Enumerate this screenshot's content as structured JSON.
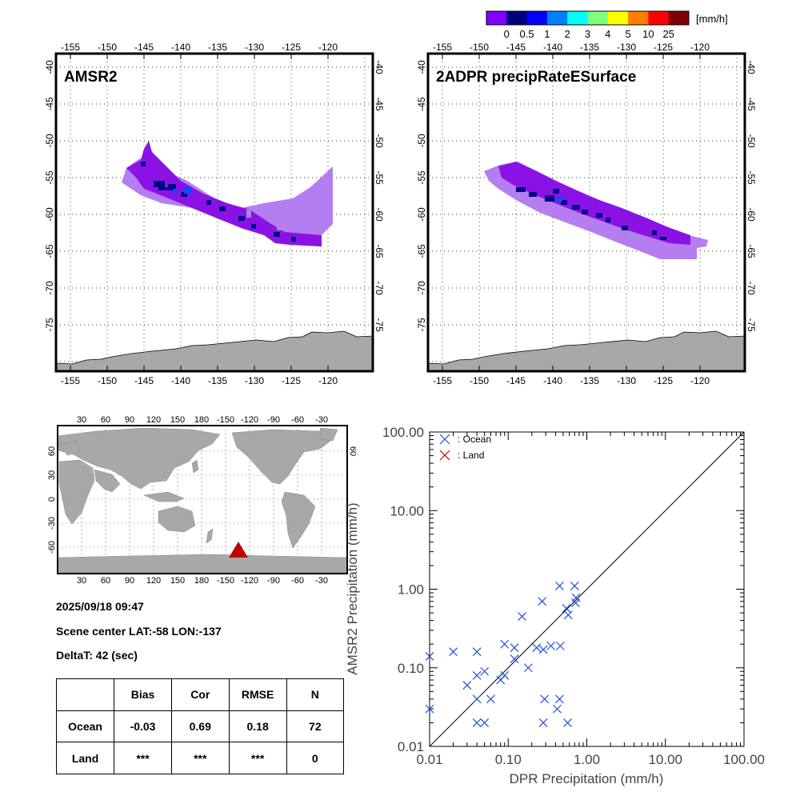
{
  "colorbar": {
    "colors": [
      "#7f00ff",
      "#00007f",
      "#0000ff",
      "#0080ff",
      "#00ffff",
      "#80ff80",
      "#ffff00",
      "#ff8000",
      "#ff0000",
      "#7f0000"
    ],
    "tick_labels": [
      "0",
      "0.5",
      "1",
      "2",
      "3",
      "4",
      "5",
      "10",
      "25"
    ],
    "unit": "[mm/h]"
  },
  "panels": {
    "left_title": "AMSR2",
    "right_title": "2ADPR precipRateESurface"
  },
  "map_axes": {
    "lon_ticks": [
      "-155",
      "-150",
      "-145",
      "-140",
      "-135",
      "-130",
      "-125",
      "-120"
    ],
    "lat_ticks": [
      "-40",
      "-45",
      "-50",
      "-55",
      "-60",
      "-65",
      "-70",
      "-75"
    ]
  },
  "world_map": {
    "top_lon_ticks": [
      "30",
      "60",
      "90",
      "120",
      "150",
      "180",
      "-150",
      "-120",
      "-90",
      "-60",
      "-30"
    ],
    "bottom_lon_ticks": [
      "30",
      "60",
      "90",
      "120",
      "150",
      "180",
      "-150",
      "-120",
      "-90",
      "-60",
      "-30"
    ],
    "lat_ticks": [
      "60",
      "30",
      "0",
      "-30",
      "-60"
    ],
    "right_lat_ticks": [
      "60"
    ]
  },
  "scene": {
    "datetime": "2025/09/18 09:47",
    "center_label": "Scene center LAT:-58   LON:-137",
    "deltat_label": "DeltaT:   42 (sec)"
  },
  "stats_table": {
    "headers": [
      "",
      "Bias",
      "Cor",
      "RMSE",
      "N"
    ],
    "rows": [
      [
        "Ocean",
        "-0.03",
        "0.69",
        "0.18",
        "72"
      ],
      [
        "Land",
        "***",
        "***",
        "***",
        "0"
      ]
    ]
  },
  "chart_data": {
    "type": "scatter",
    "title": "",
    "xlabel": "DPR Precipitation (mm/h)",
    "ylabel": "AMSR2 Precipitation (mm/h)",
    "xscale": "log",
    "yscale": "log",
    "xlim": [
      0.01,
      100
    ],
    "ylim": [
      0.01,
      100
    ],
    "x_tick_labels": [
      "0.01",
      "0.10",
      "1.00",
      "10.00",
      "100.00"
    ],
    "y_tick_labels": [
      "0.01",
      "0.10",
      "1.00",
      "10.00",
      "100.00"
    ],
    "legend": [
      {
        "label": ": Ocean",
        "color": "#1e50dc"
      },
      {
        "label": ": Land",
        "color": "#c00000"
      }
    ],
    "series": [
      {
        "name": "Ocean",
        "color": "#1e50dc",
        "points": [
          [
            0.01,
            0.14
          ],
          [
            0.01,
            0.03
          ],
          [
            0.02,
            0.16
          ],
          [
            0.03,
            0.06
          ],
          [
            0.04,
            0.16
          ],
          [
            0.04,
            0.08
          ],
          [
            0.04,
            0.04
          ],
          [
            0.04,
            0.02
          ],
          [
            0.05,
            0.09
          ],
          [
            0.05,
            0.02
          ],
          [
            0.06,
            0.04
          ],
          [
            0.08,
            0.07
          ],
          [
            0.09,
            0.08
          ],
          [
            0.09,
            0.2
          ],
          [
            0.12,
            0.13
          ],
          [
            0.12,
            0.18
          ],
          [
            0.15,
            0.45
          ],
          [
            0.18,
            0.1
          ],
          [
            0.23,
            0.18
          ],
          [
            0.27,
            0.7
          ],
          [
            0.28,
            0.17
          ],
          [
            0.29,
            0.04
          ],
          [
            0.28,
            0.02
          ],
          [
            0.35,
            0.19
          ],
          [
            0.42,
            0.03
          ],
          [
            0.45,
            0.04
          ],
          [
            0.45,
            1.1
          ],
          [
            0.46,
            0.19
          ],
          [
            0.55,
            0.57
          ],
          [
            0.57,
            0.02
          ],
          [
            0.58,
            0.47
          ],
          [
            0.7,
            1.1
          ],
          [
            0.72,
            0.67
          ],
          [
            0.73,
            0.78
          ]
        ]
      },
      {
        "name": "Land",
        "color": "#c00000",
        "points": []
      }
    ],
    "reference_line": "1:1"
  },
  "location_marker": {
    "color": "#c00000"
  },
  "land_color": "#a8a8a8"
}
